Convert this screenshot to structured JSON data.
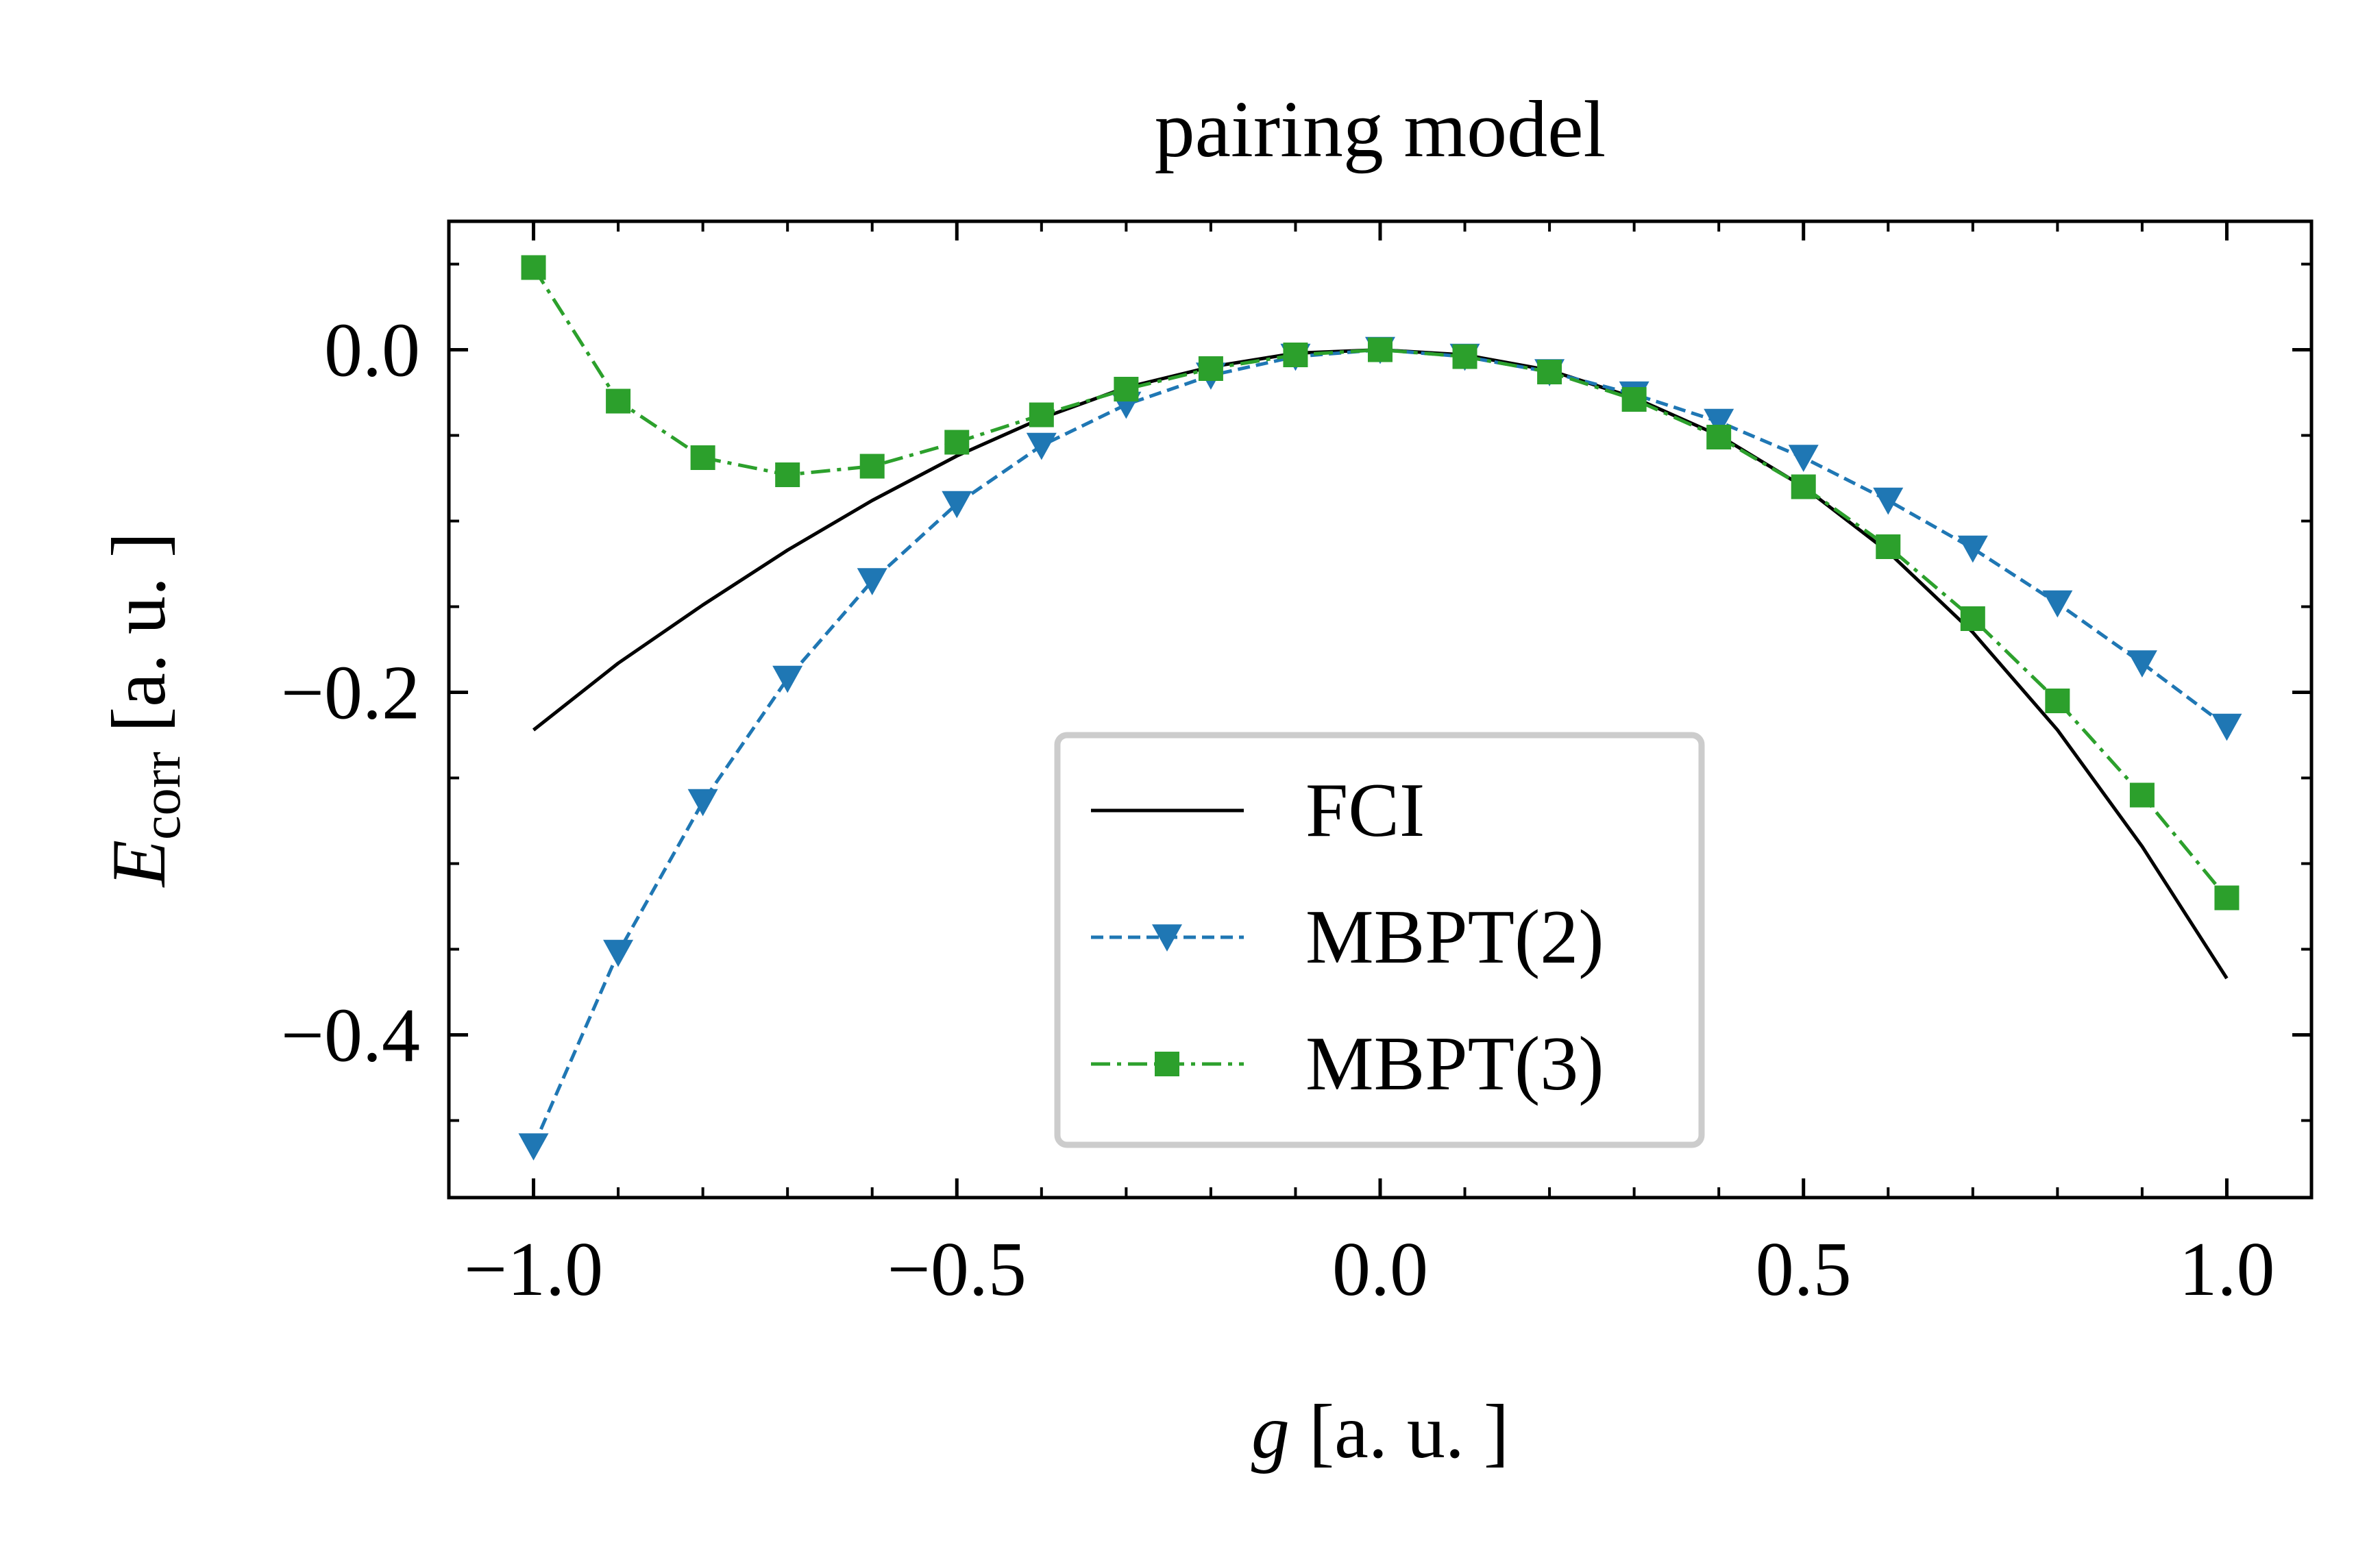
{
  "chart_data": {
    "type": "line",
    "title": "pairing model",
    "xlabel": {
      "main": "g",
      "rest": " [a. u. ]"
    },
    "ylabel": {
      "main": "E",
      "sub": "corr",
      "rest": " [a. u. ]"
    },
    "xlim": [
      -1.1,
      1.1
    ],
    "ylim": [
      -0.495,
      0.075
    ],
    "x_ticks": [
      -1.0,
      -0.5,
      0.0,
      0.5,
      1.0
    ],
    "x_tick_labels": [
      "−1.0",
      "−0.5",
      "0.0",
      "0.5",
      "1.0"
    ],
    "y_ticks": [
      0.0,
      -0.2,
      -0.4
    ],
    "y_tick_labels": [
      "0.0",
      "−0.2",
      "−0.4"
    ],
    "grid": false,
    "legend_position": "lower-center",
    "x": [
      -1.0,
      -0.9,
      -0.8,
      -0.7,
      -0.6,
      -0.5,
      -0.4,
      -0.3,
      -0.2,
      -0.1,
      0.0,
      0.1,
      0.2,
      0.3,
      0.4,
      0.5,
      0.6,
      0.7,
      0.8,
      0.9,
      1.0
    ],
    "series": [
      {
        "name": "FCI",
        "color": "#000000",
        "linestyle": "solid",
        "marker": "none",
        "values": [
          -0.222,
          -0.183,
          -0.149,
          -0.117,
          -0.088,
          -0.062,
          -0.04,
          -0.022,
          -0.01,
          -0.002,
          0.0,
          -0.003,
          -0.012,
          -0.028,
          -0.05,
          -0.08,
          -0.118,
          -0.165,
          -0.222,
          -0.29,
          -0.367
        ]
      },
      {
        "name": "MBPT(2)",
        "color": "#1f77b4",
        "linestyle": "dashed",
        "marker": "triangle-down",
        "values": [
          -0.465,
          -0.352,
          -0.264,
          -0.192,
          -0.135,
          -0.09,
          -0.056,
          -0.032,
          -0.015,
          -0.004,
          0.0,
          -0.004,
          -0.013,
          -0.026,
          -0.042,
          -0.063,
          -0.088,
          -0.116,
          -0.148,
          -0.183,
          -0.22
        ]
      },
      {
        "name": "MBPT(3)",
        "color": "#2ca02c",
        "linestyle": "dashdot",
        "marker": "square",
        "values": [
          0.048,
          -0.03,
          -0.063,
          -0.073,
          -0.068,
          -0.054,
          -0.038,
          -0.023,
          -0.011,
          -0.003,
          0.0,
          -0.004,
          -0.013,
          -0.029,
          -0.051,
          -0.08,
          -0.115,
          -0.157,
          -0.205,
          -0.26,
          -0.32
        ]
      }
    ]
  }
}
